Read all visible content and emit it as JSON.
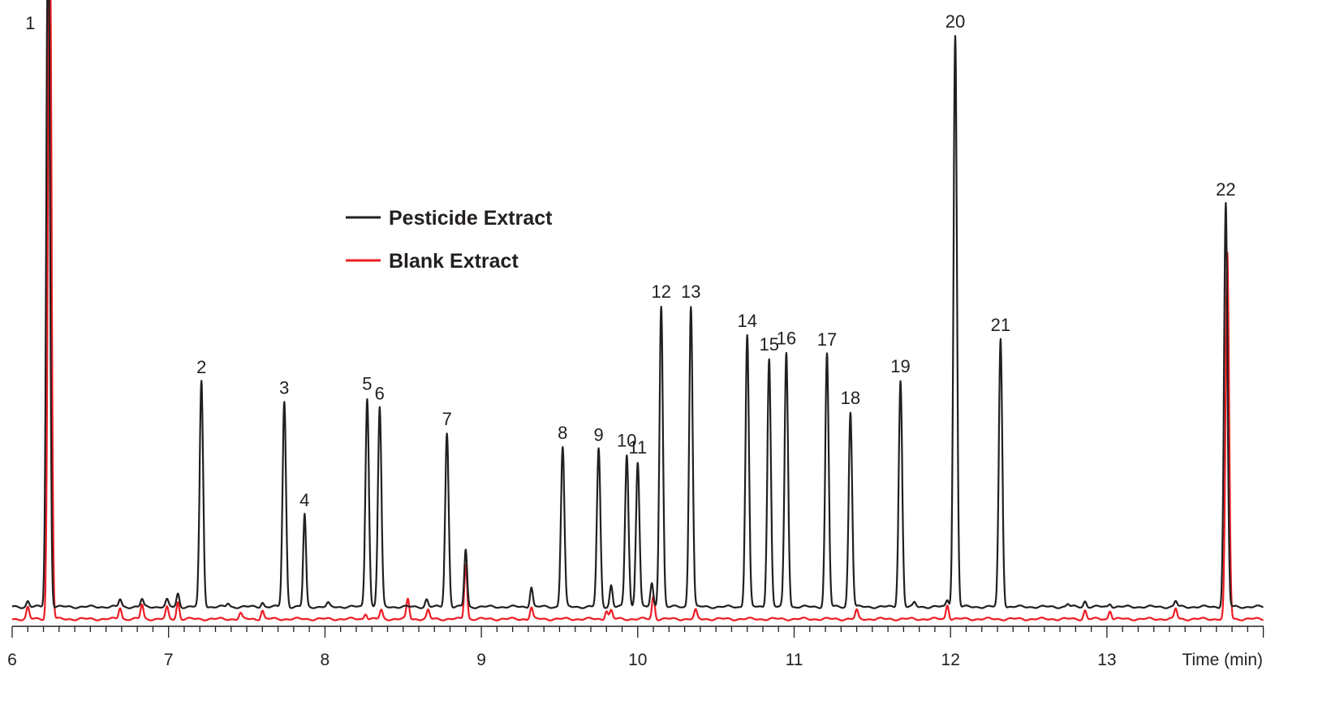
{
  "chart_data": {
    "type": "line",
    "xlabel": "Time (min)",
    "ylabel": "",
    "xlim": [
      6,
      14
    ],
    "x_ticks": [
      "6",
      "7",
      "8",
      "9",
      "10",
      "11",
      "12",
      "13"
    ],
    "x_minor_tick_step": 0.1,
    "ylim": [
      0,
      107
    ],
    "y_units": "relative response (peak 20 = 100), no y-axis printed",
    "grid": false,
    "legend_position": "center-left",
    "series": [
      {
        "name": "Pesticide Extract",
        "color": "#231f20",
        "peaks": [
          {
            "label": "1",
            "rt": 6.23,
            "height": 130,
            "off_scale": true
          },
          {
            "label": "2",
            "rt": 7.21,
            "height": 39.5
          },
          {
            "label": "3",
            "rt": 7.74,
            "height": 35.9
          },
          {
            "label": "4",
            "rt": 7.87,
            "height": 16.2
          },
          {
            "label": "5",
            "rt": 8.27,
            "height": 36.6
          },
          {
            "label": "6",
            "rt": 8.35,
            "height": 34.9
          },
          {
            "label": "7",
            "rt": 8.78,
            "height": 30.4
          },
          {
            "label": "8",
            "rt": 9.52,
            "height": 28.0
          },
          {
            "label": "9",
            "rt": 9.75,
            "height": 27.6
          },
          {
            "label": "10",
            "rt": 9.93,
            "height": 26.6
          },
          {
            "label": "11",
            "rt": 10.0,
            "height": 25.4
          },
          {
            "label": "12",
            "rt": 10.15,
            "height": 52.7
          },
          {
            "label": "13",
            "rt": 10.34,
            "height": 52.7
          },
          {
            "label": "14",
            "rt": 10.7,
            "height": 47.6
          },
          {
            "label": "15",
            "rt": 10.84,
            "height": 43.5
          },
          {
            "label": "16",
            "rt": 10.95,
            "height": 44.5
          },
          {
            "label": "17",
            "rt": 11.21,
            "height": 44.3
          },
          {
            "label": "18",
            "rt": 11.36,
            "height": 34.1
          },
          {
            "label": "19",
            "rt": 11.68,
            "height": 39.6
          },
          {
            "label": "20",
            "rt": 12.03,
            "height": 100
          },
          {
            "label": "21",
            "rt": 12.32,
            "height": 46.9
          },
          {
            "label": "22",
            "rt": 13.76,
            "height": 70.6
          }
        ],
        "minor_peaks": [
          {
            "rt": 6.1,
            "height": 1.0
          },
          {
            "rt": 6.69,
            "height": 1.3
          },
          {
            "rt": 6.83,
            "height": 1.3
          },
          {
            "rt": 6.99,
            "height": 1.2
          },
          {
            "rt": 7.06,
            "height": 2.3
          },
          {
            "rt": 7.38,
            "height": 0.6
          },
          {
            "rt": 7.6,
            "height": 0.8
          },
          {
            "rt": 8.02,
            "height": 0.6
          },
          {
            "rt": 8.65,
            "height": 1.3
          },
          {
            "rt": 8.9,
            "height": 10.0
          },
          {
            "rt": 9.32,
            "height": 3.5
          },
          {
            "rt": 9.83,
            "height": 3.8
          },
          {
            "rt": 10.09,
            "height": 4.0
          },
          {
            "rt": 11.77,
            "height": 0.7
          },
          {
            "rt": 11.98,
            "height": 1.2
          },
          {
            "rt": 12.75,
            "height": 0.5
          },
          {
            "rt": 12.86,
            "height": 1.0
          },
          {
            "rt": 13.02,
            "height": 0.6
          },
          {
            "rt": 13.44,
            "height": 1.0
          }
        ]
      },
      {
        "name": "Blank Extract",
        "color": "#ed1c24",
        "peaks": [
          {
            "rt": 6.1,
            "height": 2.0
          },
          {
            "rt": 6.24,
            "height": 130,
            "off_scale": true
          },
          {
            "rt": 6.69,
            "height": 2.0
          },
          {
            "rt": 6.83,
            "height": 2.5
          },
          {
            "rt": 6.99,
            "height": 2.0
          },
          {
            "rt": 7.06,
            "height": 3.0
          },
          {
            "rt": 7.46,
            "height": 1.0
          },
          {
            "rt": 7.6,
            "height": 1.5
          },
          {
            "rt": 8.26,
            "height": 1.0
          },
          {
            "rt": 8.36,
            "height": 1.5
          },
          {
            "rt": 8.53,
            "height": 3.5
          },
          {
            "rt": 8.66,
            "height": 1.5
          },
          {
            "rt": 8.9,
            "height": 9.6
          },
          {
            "rt": 9.32,
            "height": 2.0
          },
          {
            "rt": 9.8,
            "height": 1.5
          },
          {
            "rt": 9.83,
            "height": 1.5
          },
          {
            "rt": 10.1,
            "height": 4.0
          },
          {
            "rt": 10.37,
            "height": 1.5
          },
          {
            "rt": 11.4,
            "height": 1.5
          },
          {
            "rt": 11.98,
            "height": 2.5
          },
          {
            "rt": 12.86,
            "height": 1.5
          },
          {
            "rt": 13.02,
            "height": 1.5
          },
          {
            "rt": 13.44,
            "height": 1.8
          },
          {
            "rt": 13.77,
            "height": 64.0
          }
        ]
      }
    ]
  }
}
